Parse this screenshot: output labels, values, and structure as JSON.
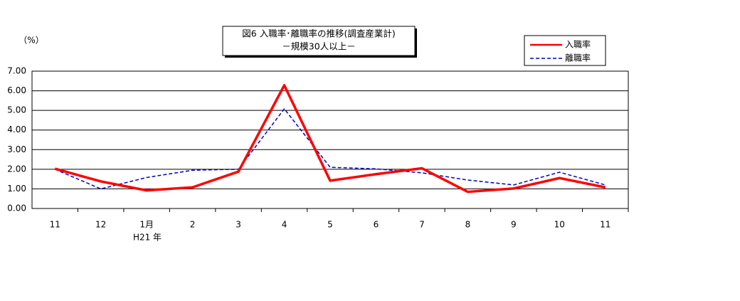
{
  "chart_data": {
    "type": "line",
    "title": "図6 入職率･離職率の推移(調査産業計)",
    "subtitle": "－規模30人以上－",
    "y_label": "（%）",
    "year_label": "H21 年",
    "categories": [
      "11",
      "12",
      "1月",
      "2",
      "3",
      "4",
      "5",
      "6",
      "7",
      "8",
      "9",
      "10",
      "11"
    ],
    "series": [
      {
        "name": "入職率",
        "color": "#ff0000",
        "dash": false,
        "width": 3.5,
        "values": [
          2.03,
          1.38,
          0.92,
          1.08,
          1.88,
          6.28,
          1.42,
          1.75,
          2.05,
          0.85,
          1.02,
          1.55,
          1.08
        ]
      },
      {
        "name": "離職率",
        "color": "#0000cc",
        "dash": true,
        "width": 1.5,
        "values": [
          2.0,
          1.0,
          1.58,
          1.95,
          2.0,
          5.08,
          2.1,
          2.02,
          1.82,
          1.45,
          1.2,
          1.85,
          1.2
        ]
      }
    ],
    "ylim": [
      0,
      7
    ],
    "yticks": [
      {
        "value": 0,
        "label": "0.00"
      },
      {
        "value": 1,
        "label": "1.00"
      },
      {
        "value": 2,
        "label": "2.00"
      },
      {
        "value": 3,
        "label": "3.00"
      },
      {
        "value": 4,
        "label": "4.00"
      },
      {
        "value": 5,
        "label": "5.00"
      },
      {
        "value": 6,
        "label": "6.00"
      },
      {
        "value": 7,
        "label": "7.00"
      }
    ],
    "grid": true
  }
}
